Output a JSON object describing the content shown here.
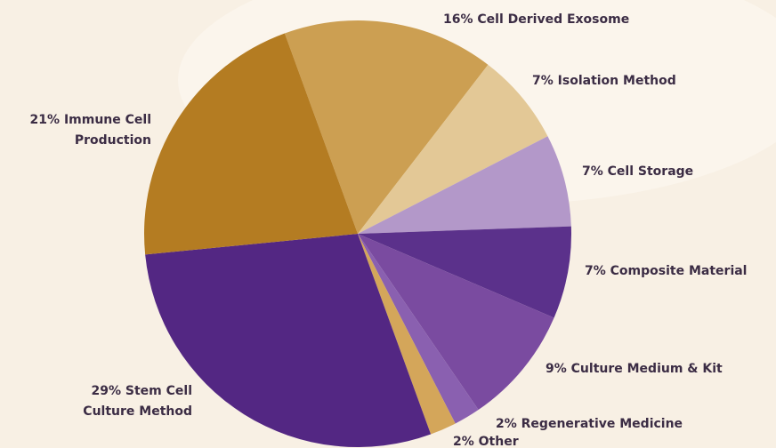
{
  "chart_data": {
    "type": "pie",
    "categories": [
      "Cell Derived Exosome",
      "Isolation Method",
      "Cell Storage",
      "Composite Material",
      "Culture Medium & Kit",
      "Regenerative Medicine",
      "Other",
      "Stem Cell Culture Method",
      "Immune Cell Production"
    ],
    "values": [
      16,
      7,
      7,
      7,
      9,
      2,
      2,
      29,
      21
    ],
    "value_labels": [
      "16%",
      "7%",
      "7%",
      "7%",
      "9%",
      "2%",
      "2%",
      "29%",
      "21%"
    ],
    "colors": [
      "#cc9f52",
      "#e3c896",
      "#b398c9",
      "#5b318b",
      "#7a4ba0",
      "#8a60b0",
      "#d4a65a",
      "#532783",
      "#b47c22"
    ]
  }
}
